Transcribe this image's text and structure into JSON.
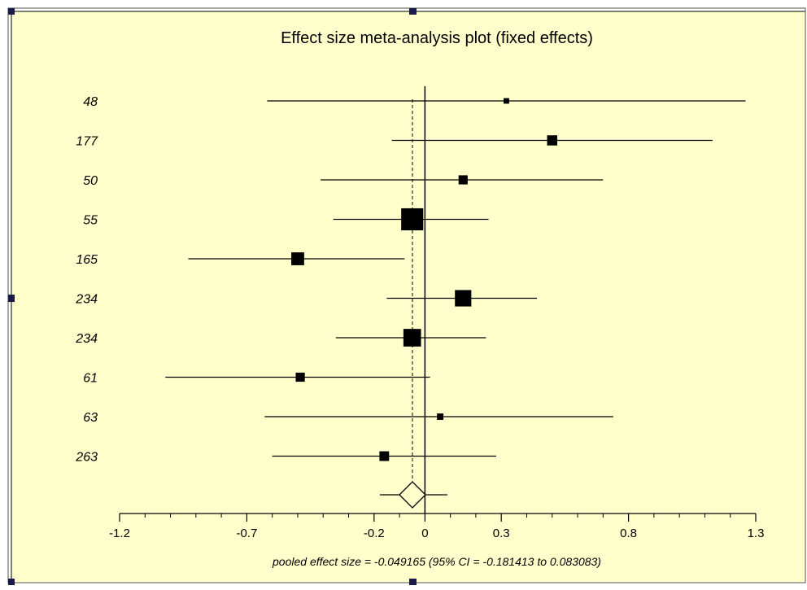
{
  "colors": {
    "background": "#ffffcc",
    "ink": "#000000",
    "handle": "#1a1a4d"
  },
  "chart_data": {
    "type": "forest",
    "title": "Effect size meta-analysis plot (fixed effects)",
    "xlim": [
      -1.2,
      1.3
    ],
    "x_ticks": [
      "-1.2",
      "-0.7",
      "-0.2",
      "0",
      "0.3",
      "0.8",
      "1.3"
    ],
    "x_tick_values": [
      -1.2,
      -0.7,
      -0.2,
      0,
      0.3,
      0.8,
      1.3
    ],
    "studies": [
      {
        "label": "48",
        "effect": 0.32,
        "ci_low": -0.62,
        "ci_high": 1.26,
        "weight": 0.3
      },
      {
        "label": "177",
        "effect": 0.5,
        "ci_low": -0.13,
        "ci_high": 1.13,
        "weight": 1.0
      },
      {
        "label": "50",
        "effect": 0.15,
        "ci_low": -0.41,
        "ci_high": 0.7,
        "weight": 0.8
      },
      {
        "label": "55",
        "effect": -0.05,
        "ci_low": -0.36,
        "ci_high": 0.25,
        "weight": 4.7
      },
      {
        "label": "165",
        "effect": -0.5,
        "ci_low": -0.93,
        "ci_high": -0.08,
        "weight": 1.6
      },
      {
        "label": "234",
        "effect": 0.15,
        "ci_low": -0.15,
        "ci_high": 0.44,
        "weight": 2.6
      },
      {
        "label": "234",
        "effect": -0.05,
        "ci_low": -0.35,
        "ci_high": 0.24,
        "weight": 3.0
      },
      {
        "label": "61",
        "effect": -0.49,
        "ci_low": -1.02,
        "ci_high": 0.02,
        "weight": 0.8
      },
      {
        "label": "63",
        "effect": 0.06,
        "ci_low": -0.63,
        "ci_high": 0.74,
        "weight": 0.4
      },
      {
        "label": "263",
        "effect": -0.16,
        "ci_low": -0.6,
        "ci_high": 0.28,
        "weight": 0.9
      }
    ],
    "pooled": {
      "effect": -0.049165,
      "ci_low": -0.181413,
      "ci_high": 0.083083
    },
    "footer": "pooled effect size = -0.049165  (95% CI = -0.181413 to 0.083083)"
  }
}
